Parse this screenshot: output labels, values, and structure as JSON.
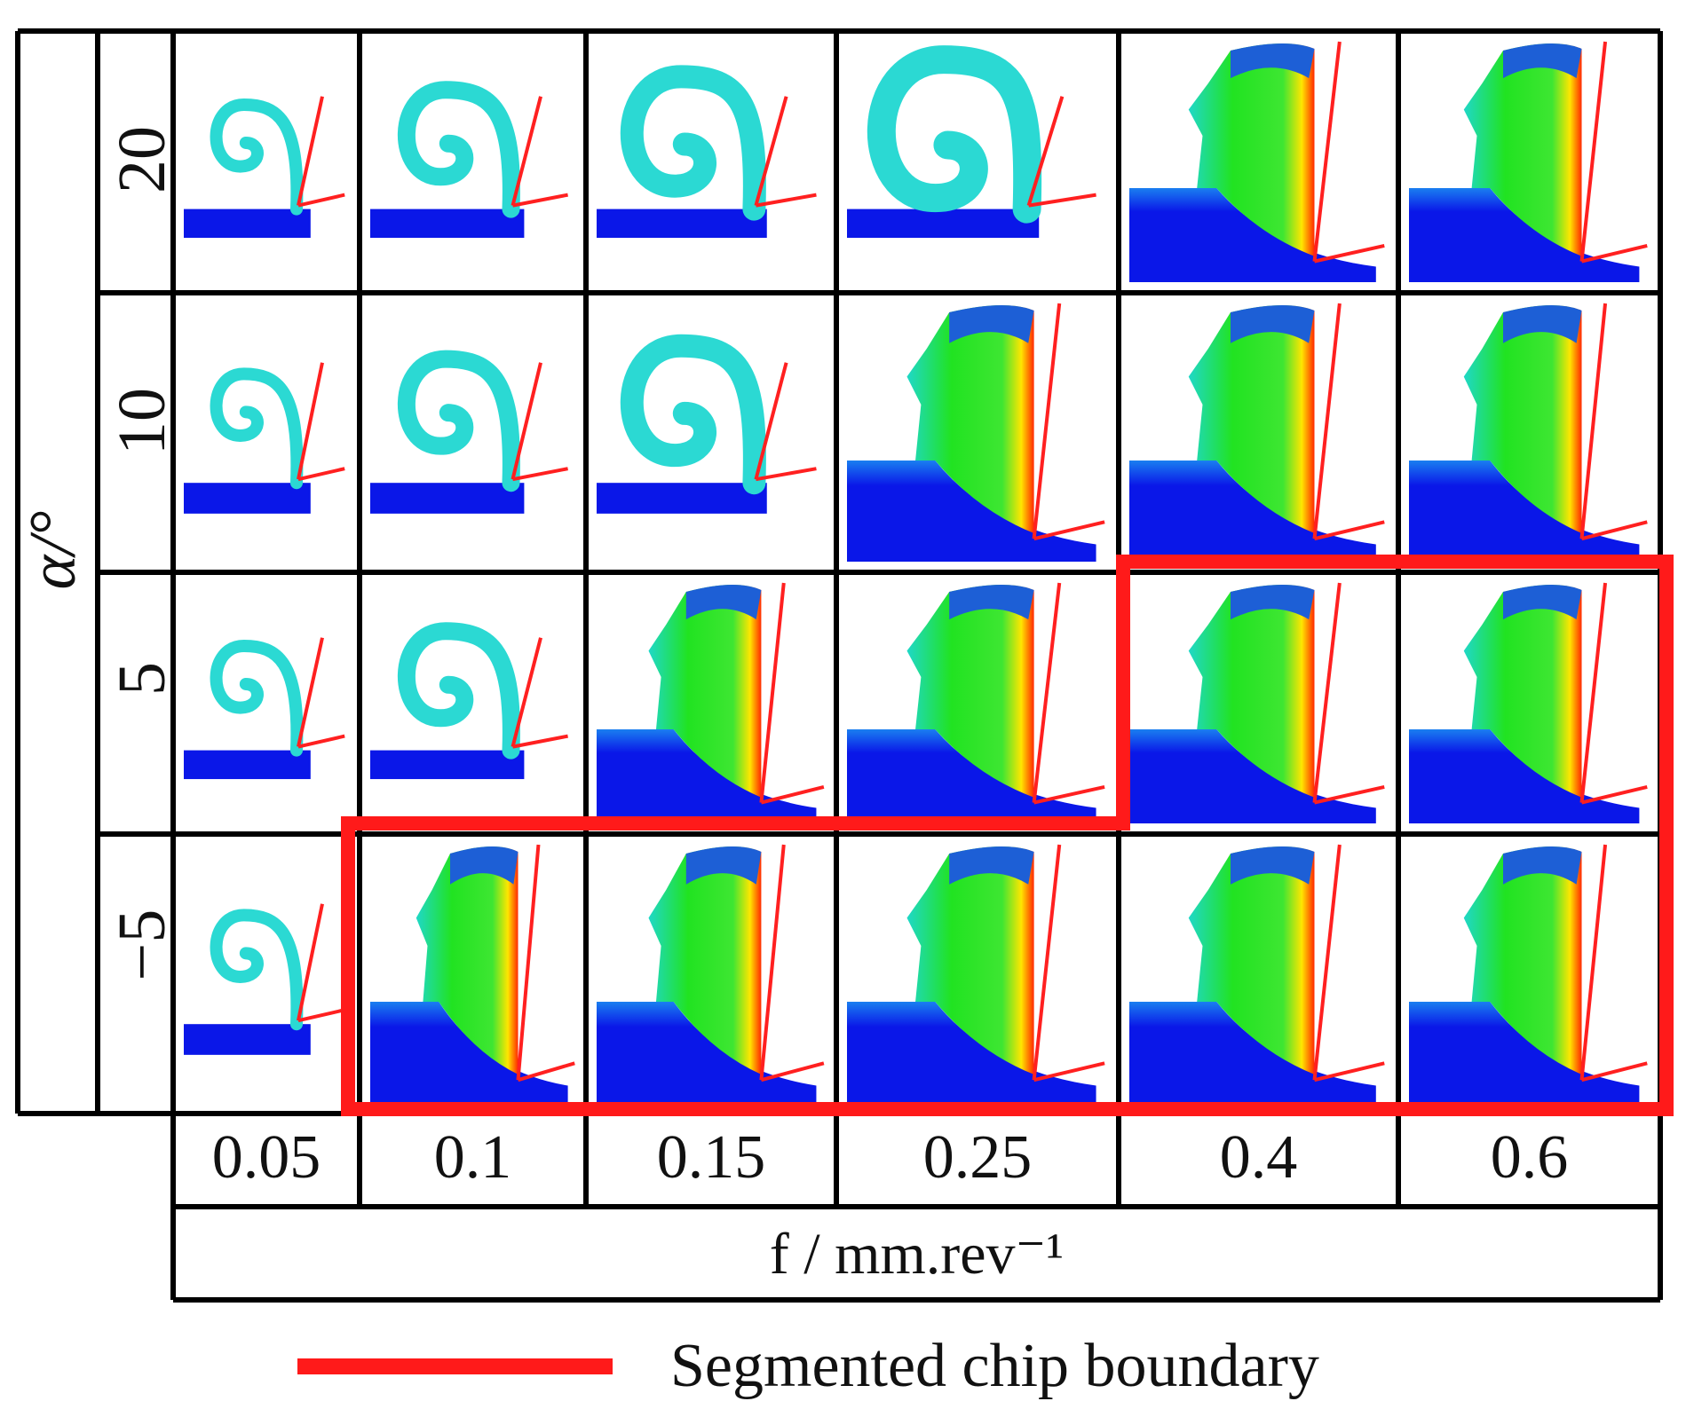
{
  "y_axis": {
    "label": "α/°"
  },
  "x_axis": {
    "label": "f / mm.rev⁻¹"
  },
  "rake_angles": [
    "20",
    "10",
    "5",
    "−5"
  ],
  "feeds": [
    "0.05",
    "0.1",
    "0.15",
    "0.25",
    "0.4",
    "0.6"
  ],
  "legend": {
    "label": "Segmented chip boundary",
    "color": "#ff1a1a"
  },
  "colors": {
    "workpiece": "#0a17e8",
    "low_strain": "#2bd9d3",
    "mid_strain": "#21e321",
    "high_strain": "#ff2a00",
    "tool": "#ff2020"
  },
  "chip_states": [
    [
      "curl",
      "curl",
      "curl",
      "curl",
      "segmented",
      "segmented"
    ],
    [
      "curl",
      "curl",
      "curl",
      "segmented",
      "segmented",
      "segmented"
    ],
    [
      "curl",
      "curl",
      "segmented",
      "segmented",
      "segmented",
      "segmented"
    ],
    [
      "curl",
      "segmented",
      "segmented",
      "segmented",
      "segmented",
      "segmented"
    ]
  ]
}
